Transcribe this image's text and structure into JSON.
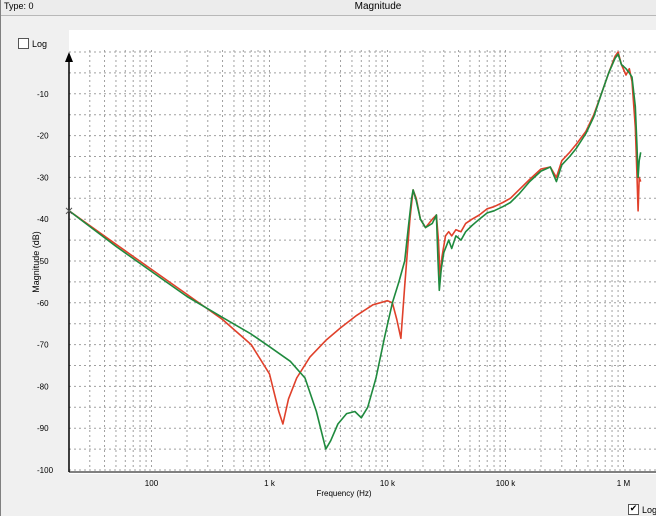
{
  "header": {
    "type_label": "Type: 0"
  },
  "controls": {
    "log_top_label": "Log",
    "log_top_checked": false,
    "log_bottom_label": "Log",
    "log_bottom_checked": true
  },
  "colors": {
    "background": "#ffffff",
    "grid": "#a0a0a0",
    "series_red": "#e0412b",
    "series_green": "#1f8a3e"
  },
  "chart_data": {
    "type": "line",
    "title": "Magnitude",
    "xlabel": "Frequency (Hz)",
    "ylabel": "Magnitude (dB)",
    "xscale": "log",
    "xlim": [
      20,
      1400000
    ],
    "ylim": [
      -100,
      0
    ],
    "grid": true,
    "x_ticks": [
      {
        "value": 100,
        "label": "100"
      },
      {
        "value": 1000,
        "label": "1 k"
      },
      {
        "value": 10000,
        "label": "10 k"
      },
      {
        "value": 100000,
        "label": "100 k"
      },
      {
        "value": 1000000,
        "label": "1 M"
      }
    ],
    "y_ticks": [
      -10,
      -20,
      -30,
      -40,
      -50,
      -60,
      -70,
      -80,
      -90,
      -100
    ],
    "series": [
      {
        "color": "#e0412b",
        "points": [
          [
            20,
            -38
          ],
          [
            50,
            -46
          ],
          [
            100,
            -52
          ],
          [
            200,
            -58
          ],
          [
            400,
            -64
          ],
          [
            700,
            -70
          ],
          [
            1000,
            -77
          ],
          [
            1200,
            -86
          ],
          [
            1300,
            -89
          ],
          [
            1450,
            -83
          ],
          [
            1700,
            -78
          ],
          [
            2200,
            -73
          ],
          [
            3000,
            -69
          ],
          [
            4000,
            -66
          ],
          [
            5500,
            -63
          ],
          [
            7500,
            -60.5
          ],
          [
            10000,
            -59.5
          ],
          [
            11000,
            -60
          ],
          [
            12000,
            -64
          ],
          [
            13000,
            -68.5
          ],
          [
            14000,
            -56
          ],
          [
            15500,
            -40
          ],
          [
            16500,
            -33
          ],
          [
            17500,
            -35
          ],
          [
            19000,
            -40
          ],
          [
            21000,
            -42
          ],
          [
            24000,
            -40
          ],
          [
            26000,
            -39
          ],
          [
            27000,
            -45
          ],
          [
            28000,
            -54
          ],
          [
            29000,
            -49
          ],
          [
            31000,
            -44
          ],
          [
            33000,
            -43
          ],
          [
            35000,
            -44
          ],
          [
            38000,
            -42.5
          ],
          [
            42000,
            -43
          ],
          [
            46000,
            -41
          ],
          [
            52000,
            -40
          ],
          [
            60000,
            -39
          ],
          [
            70000,
            -37.5
          ],
          [
            80000,
            -37
          ],
          [
            95000,
            -36
          ],
          [
            110000,
            -35
          ],
          [
            130000,
            -33
          ],
          [
            160000,
            -30.5
          ],
          [
            200000,
            -28
          ],
          [
            240000,
            -27.5
          ],
          [
            270000,
            -30
          ],
          [
            300000,
            -26
          ],
          [
            350000,
            -24
          ],
          [
            400000,
            -22
          ],
          [
            480000,
            -19
          ],
          [
            560000,
            -15
          ],
          [
            650000,
            -10
          ],
          [
            750000,
            -5
          ],
          [
            850000,
            -1
          ],
          [
            900000,
            0
          ],
          [
            960000,
            -3
          ],
          [
            1050000,
            -5.5
          ],
          [
            1120000,
            -4
          ],
          [
            1180000,
            -7
          ],
          [
            1260000,
            -18
          ],
          [
            1300000,
            -29
          ],
          [
            1330000,
            -38
          ],
          [
            1360000,
            -30
          ],
          [
            1400000,
            -31
          ]
        ]
      },
      {
        "color": "#1f8a3e",
        "points": [
          [
            20,
            -38
          ],
          [
            50,
            -46.5
          ],
          [
            100,
            -52.5
          ],
          [
            200,
            -58.5
          ],
          [
            400,
            -63.5
          ],
          [
            700,
            -67.5
          ],
          [
            1000,
            -70.5
          ],
          [
            1500,
            -74
          ],
          [
            2000,
            -78
          ],
          [
            2500,
            -86
          ],
          [
            3000,
            -95
          ],
          [
            3300,
            -93
          ],
          [
            3800,
            -89
          ],
          [
            4500,
            -86.5
          ],
          [
            5300,
            -86
          ],
          [
            6000,
            -87.5
          ],
          [
            6800,
            -85
          ],
          [
            8000,
            -78
          ],
          [
            9500,
            -68
          ],
          [
            11000,
            -60
          ],
          [
            12500,
            -55
          ],
          [
            14000,
            -50
          ],
          [
            15000,
            -42
          ],
          [
            16000,
            -35
          ],
          [
            16500,
            -33
          ],
          [
            17500,
            -35.5
          ],
          [
            19000,
            -40
          ],
          [
            21000,
            -42
          ],
          [
            24000,
            -41
          ],
          [
            26000,
            -39
          ],
          [
            26800,
            -50
          ],
          [
            27500,
            -57
          ],
          [
            28500,
            -52
          ],
          [
            30000,
            -48
          ],
          [
            33000,
            -45
          ],
          [
            35000,
            -47
          ],
          [
            38000,
            -44
          ],
          [
            42000,
            -45
          ],
          [
            46000,
            -43
          ],
          [
            52000,
            -41.5
          ],
          [
            60000,
            -40
          ],
          [
            70000,
            -38.5
          ],
          [
            80000,
            -38
          ],
          [
            95000,
            -37
          ],
          [
            110000,
            -36
          ],
          [
            130000,
            -34
          ],
          [
            160000,
            -31
          ],
          [
            200000,
            -28.5
          ],
          [
            240000,
            -27.5
          ],
          [
            270000,
            -31
          ],
          [
            300000,
            -27
          ],
          [
            350000,
            -25
          ],
          [
            400000,
            -23
          ],
          [
            480000,
            -19.5
          ],
          [
            560000,
            -15.5
          ],
          [
            650000,
            -10
          ],
          [
            750000,
            -5
          ],
          [
            850000,
            -1.5
          ],
          [
            900000,
            -0.5
          ],
          [
            960000,
            -3
          ],
          [
            1050000,
            -4
          ],
          [
            1120000,
            -5
          ],
          [
            1180000,
            -6
          ],
          [
            1260000,
            -13
          ],
          [
            1300000,
            -22
          ],
          [
            1330000,
            -30
          ],
          [
            1360000,
            -26
          ],
          [
            1400000,
            -24
          ]
        ]
      }
    ]
  }
}
